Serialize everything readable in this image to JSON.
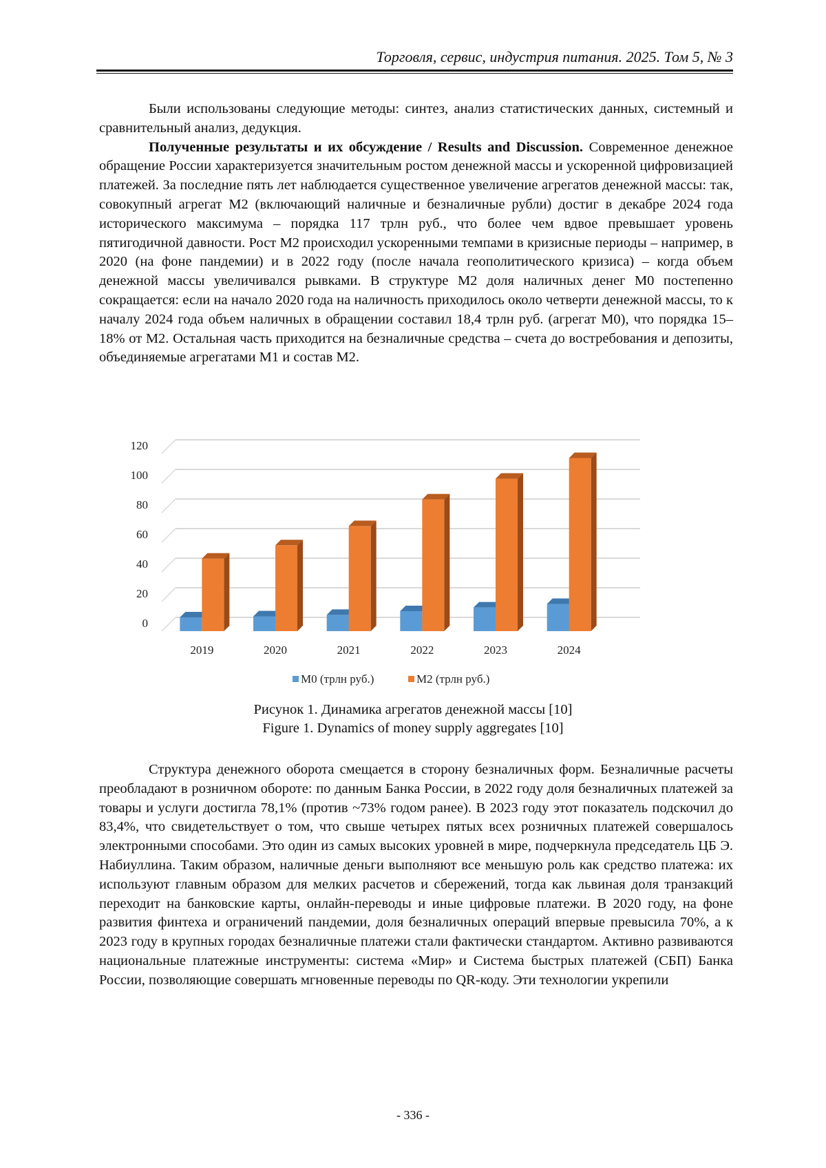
{
  "header": {
    "journal": "Торговля, сервис, индустрия питания. 2025. Том 5, № 3"
  },
  "paragraphs": {
    "p1": "Были использованы следующие методы: синтез, анализ статистических данных, системный и сравнительный анализ, дедукция.",
    "p2_heading": "Полученные результаты и их обсуждение / Results and Discussion.",
    "p2": " Современное денежное обращение России характеризуется значительным ростом денежной массы и ускоренной цифровизацией платежей. За последние пять лет наблюдается существенное увеличение агрегатов денежной массы: так, совокупный агрегат М2 (включающий наличные и безналичные рубли) достиг в декабре 2024 года исторического максимума – порядка 117 трлн руб., что более чем вдвое превышает уровень пятигодичной давности. Рост М2 происходил ускоренными темпами в кризисные периоды – например, в 2020 (на фоне пандемии) и в 2022 году (после начала геополитического кризиса) – когда объем денежной массы увеличивался рывками. В структуре М2 доля наличных денег М0 постепенно сокращается: если на начало 2020 года на наличность приходилось около четверти денежной массы, то к началу 2024 года объем наличных в обращении составил 18,4 трлн руб. (агрегат М0), что порядка 15–18% от М2. Остальная часть приходится на безналичные средства – счета до востребования и депозиты, объединяемые агрегатами М1 и состав М2.",
    "p3": "Структура денежного оборота смещается в сторону безналичных форм. Безналичные расчеты преобладают в розничном обороте: по данным Банка России, в 2022 году доля безналичных платежей за товары и услуги достигла 78,1% (против ~73% годом ранее). В 2023 году этот показатель подскочил до 83,4%, что свидетельствует о том, что свыше четырех пятых всех розничных платежей совершалось электронными способами. Это один из самых высоких уровней в мире, подчеркнула председатель ЦБ Э. Набиуллина. Таким образом, наличные деньги выполняют все меньшую роль как средство платежа: их используют главным образом для мелких расчетов и сбережений, тогда как львиная доля транзакций переходит на банковские карты, онлайн-переводы и иные цифровые платежи. В 2020 году, на фоне развития финтеха и ограничений пандемии, доля безналичных операций впервые превысила 70%, а к 2023 году в крупных городах безналичные платежи стали фактически стандартом. Активно развиваются национальные платежные инструменты: система «Мир» и Система быстрых платежей (СБП) Банка России, позволяющие совершать мгновенные переводы по QR-коду. Эти технологии укрепили"
  },
  "figure": {
    "caption_ru": "Рисунок 1. Динамика агрегатов денежной массы [10]",
    "caption_en": "Figure 1. Dynamics of money supply aggregates [10]"
  },
  "chart_data": {
    "type": "bar",
    "style": "3d-clustered-column",
    "categories": [
      "2019",
      "2020",
      "2021",
      "2022",
      "2023",
      "2024"
    ],
    "series": [
      {
        "name": "М0 (трлн руб.)",
        "values": [
          9.3,
          10,
          11,
          13.5,
          16,
          18.4
        ],
        "color": "#5b9bd5"
      },
      {
        "name": "М2 (трлн руб.)",
        "values": [
          49,
          58,
          71,
          89,
          103,
          117
        ],
        "color": "#ed7d31"
      }
    ],
    "yticks": [
      "0",
      "20",
      "40",
      "60",
      "80",
      "100",
      "120"
    ],
    "ylim": [
      0,
      130
    ],
    "grid": true,
    "legend": "bottom"
  },
  "footer": {
    "page": "- 336 -"
  }
}
